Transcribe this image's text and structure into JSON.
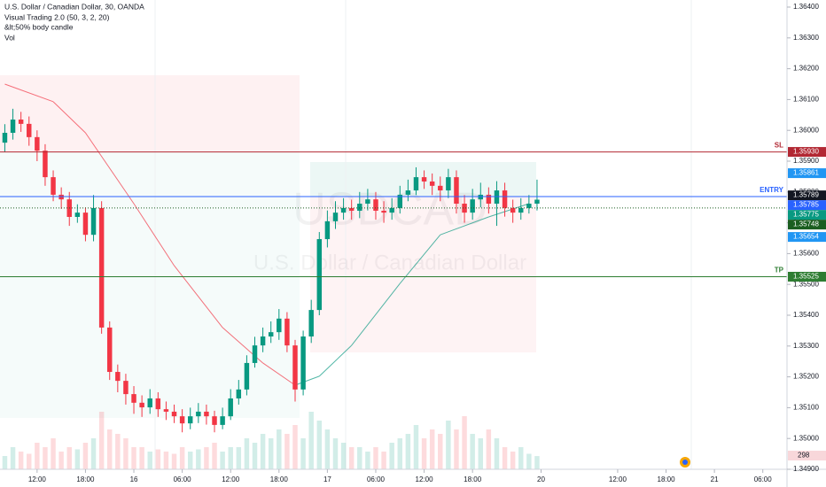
{
  "chart_data": {
    "type": "candlestick",
    "title": "U.S. Dollar / Canadian Dollar, 30, OANDA",
    "indicators": [
      "Visual Trading 2.0 (50, 3, 2, 20)",
      "&lt;50% body candle",
      "Vol"
    ],
    "watermark": [
      "USDCAD",
      "U.S. Dollar / Canadian Dollar"
    ],
    "x": [
      -4,
      -3,
      -2,
      -1,
      0,
      1,
      2,
      3,
      4,
      5,
      6,
      7,
      8,
      9,
      10,
      11,
      12,
      13,
      14,
      15,
      16,
      17,
      18,
      19,
      20,
      21,
      22,
      23,
      24,
      25,
      26,
      27,
      28,
      29,
      30,
      31,
      32,
      33,
      34,
      35,
      36,
      37,
      38,
      39,
      40,
      41,
      42,
      43,
      44,
      45,
      46,
      47,
      48,
      49,
      50,
      51,
      52,
      53,
      54,
      55,
      56,
      57,
      58,
      59,
      60,
      61,
      62
    ],
    "open": [
      1.3596,
      1.35992,
      1.36035,
      1.36021,
      1.35978,
      1.35934,
      1.35848,
      1.35791,
      1.35776,
      1.35719,
      1.35733,
      1.35661,
      1.35748,
      1.3536,
      1.35216,
      1.35187,
      1.35144,
      1.35116,
      1.35101,
      1.3513,
      1.35095,
      1.35087,
      1.35072,
      1.35049,
      1.35072,
      1.35087,
      1.35072,
      1.35044,
      1.35072,
      1.3513,
      1.35159,
      1.35245,
      1.35302,
      1.35331,
      1.35345,
      1.35389,
      1.35302,
      1.35159,
      1.35331,
      1.35417,
      1.35647,
      1.35705,
      1.35733,
      1.35748,
      1.35739,
      1.35762,
      1.35776,
      1.35739,
      1.35733,
      1.35748,
      1.35791,
      1.35805,
      1.35848,
      1.35834,
      1.3582,
      1.35805,
      1.35848,
      1.35762,
      1.35733,
      1.35776,
      1.35791,
      1.35762,
      1.35805,
      1.35748,
      1.35733,
      1.35748,
      1.35762
    ],
    "high": [
      1.3602,
      1.3607,
      1.3606,
      1.36045,
      1.36,
      1.35955,
      1.3587,
      1.35815,
      1.358,
      1.3576,
      1.3575,
      1.3579,
      1.3577,
      1.3538,
      1.3524,
      1.3521,
      1.3517,
      1.3514,
      1.3516,
      1.3515,
      1.3512,
      1.3511,
      1.35095,
      1.351,
      1.35115,
      1.3511,
      1.3509,
      1.351,
      1.3516,
      1.3519,
      1.3527,
      1.3533,
      1.3536,
      1.3538,
      1.3542,
      1.3541,
      1.3532,
      1.3535,
      1.3545,
      1.3567,
      1.3574,
      1.3577,
      1.3578,
      1.35775,
      1.358,
      1.3581,
      1.358,
      1.3577,
      1.3578,
      1.3582,
      1.3584,
      1.3588,
      1.3587,
      1.3586,
      1.3585,
      1.35875,
      1.3587,
      1.3579,
      1.3581,
      1.3583,
      1.35815,
      1.35835,
      1.3583,
      1.35775,
      1.3578,
      1.3579,
      1.3584
    ],
    "low": [
      1.3593,
      1.3597,
      1.35995,
      1.3595,
      1.359,
      1.3582,
      1.3577,
      1.35745,
      1.3569,
      1.357,
      1.3564,
      1.3564,
      1.3534,
      1.3519,
      1.3515,
      1.3511,
      1.3508,
      1.3507,
      1.3508,
      1.3507,
      1.3506,
      1.3505,
      1.3502,
      1.3503,
      1.3505,
      1.35045,
      1.3502,
      1.3503,
      1.3506,
      1.3511,
      1.3514,
      1.3523,
      1.3528,
      1.3531,
      1.3532,
      1.3528,
      1.3512,
      1.3514,
      1.3531,
      1.354,
      1.3562,
      1.3568,
      1.3571,
      1.3571,
      1.35715,
      1.3574,
      1.3571,
      1.357,
      1.3571,
      1.3573,
      1.3577,
      1.3579,
      1.3581,
      1.3579,
      1.3577,
      1.3578,
      1.3573,
      1.357,
      1.3571,
      1.3575,
      1.3573,
      1.3569,
      1.3572,
      1.357,
      1.3571,
      1.3573,
      1.3574
    ],
    "close": [
      1.35992,
      1.36035,
      1.36021,
      1.35978,
      1.35934,
      1.35848,
      1.35791,
      1.35776,
      1.35719,
      1.35733,
      1.35661,
      1.35748,
      1.3536,
      1.35216,
      1.35187,
      1.35144,
      1.35116,
      1.35101,
      1.3513,
      1.35095,
      1.35087,
      1.35072,
      1.35049,
      1.35072,
      1.35087,
      1.35072,
      1.35044,
      1.35072,
      1.3513,
      1.35159,
      1.35245,
      1.35302,
      1.35331,
      1.35345,
      1.35389,
      1.35302,
      1.35159,
      1.35331,
      1.35417,
      1.35647,
      1.35705,
      1.35733,
      1.35748,
      1.35739,
      1.35762,
      1.35776,
      1.35739,
      1.35733,
      1.35748,
      1.35791,
      1.35805,
      1.35848,
      1.35834,
      1.3582,
      1.35805,
      1.35848,
      1.35762,
      1.35733,
      1.35776,
      1.35791,
      1.35762,
      1.35805,
      1.35748,
      1.35733,
      1.35748,
      1.35762,
      1.35775
    ],
    "volume": [
      300,
      500,
      400,
      350,
      600,
      500,
      700,
      400,
      500,
      450,
      600,
      700,
      1300,
      900,
      800,
      700,
      500,
      500,
      400,
      450,
      400,
      350,
      500,
      400,
      450,
      500,
      600,
      400,
      500,
      500,
      700,
      600,
      800,
      700,
      900,
      800,
      1000,
      700,
      1300,
      1100,
      900,
      700,
      600,
      500,
      500,
      400,
      500,
      400,
      600,
      700,
      800,
      1000,
      700,
      900,
      800,
      1100,
      900,
      1200,
      800,
      700,
      900,
      700,
      500,
      400,
      500,
      350,
      298
    ],
    "volume_label": "298",
    "up_color": "#089981",
    "down_color": "#f23645",
    "ma": {
      "x": [
        -4,
        2,
        6,
        12,
        17,
        23,
        28,
        32,
        35,
        39,
        45,
        50,
        56,
        61
      ],
      "values": [
        1.3615,
        1.36093,
        1.35992,
        1.35762,
        1.35561,
        1.3536,
        1.35245,
        1.35173,
        1.35202,
        1.35302,
        1.35503,
        1.35661,
        1.35719,
        1.35762
      ]
    },
    "levels": [
      {
        "name": "SL",
        "value": 1.3593,
        "color": "#b22833"
      },
      {
        "name": "ENTRY",
        "value": 1.35785,
        "color": "#2962ff"
      },
      {
        "name": "TP",
        "value": 1.35525,
        "color": "#2e7d32"
      }
    ],
    "price_labels": [
      {
        "value": 1.3593,
        "label": "1.35930",
        "color": "#b22833"
      },
      {
        "value": 1.35861,
        "label": "1.35861",
        "color": "#2196f3"
      },
      {
        "value": 1.35789,
        "label": "1.35789",
        "color": "#131722"
      },
      {
        "value": 1.35785,
        "label": "1.35785",
        "color": "#2962ff"
      },
      {
        "value": 1.35775,
        "label": "1.35775",
        "color": "#089981"
      },
      {
        "value": 1.35748,
        "label": "1.35748",
        "color": "#1b5e20",
        "line": "dotted"
      },
      {
        "value": 1.35654,
        "label": "1.35654",
        "color": "#2196f3"
      },
      {
        "value": 1.35525,
        "label": "1.35525",
        "color": "#2e7d32"
      }
    ],
    "xlim": [
      -4.6,
      93
    ],
    "xticks": [
      {
        "value": 0,
        "label": "12:00"
      },
      {
        "value": 6,
        "label": "18:00"
      },
      {
        "value": 12,
        "label": "16"
      },
      {
        "value": 18,
        "label": "06:00"
      },
      {
        "value": 24,
        "label": "12:00"
      },
      {
        "value": 30,
        "label": "18:00"
      },
      {
        "value": 36,
        "label": "17"
      },
      {
        "value": 42,
        "label": "06:00"
      },
      {
        "value": 48,
        "label": "12:00"
      },
      {
        "value": 54,
        "label": "18:00"
      },
      {
        "value": 62.5,
        "label": "20"
      },
      {
        "value": 72,
        "label": "12:00"
      },
      {
        "value": 78,
        "label": "18:00"
      },
      {
        "value": 84,
        "label": "21"
      },
      {
        "value": 90,
        "label": "06:00"
      }
    ],
    "ylim": [
      1.349,
      1.36423
    ],
    "yticks": [
      {
        "value": 1.364,
        "label": "1.36400"
      },
      {
        "value": 1.363,
        "label": "1.36300"
      },
      {
        "value": 1.362,
        "label": "1.36200"
      },
      {
        "value": 1.361,
        "label": "1.36100"
      },
      {
        "value": 1.36,
        "label": "1.36000"
      },
      {
        "value": 1.359,
        "label": "1.35900"
      },
      {
        "value": 1.358,
        "label": "1.35800"
      },
      {
        "value": 1.357,
        "label": "1.35700"
      },
      {
        "value": 1.356,
        "label": "1.35600"
      },
      {
        "value": 1.355,
        "label": "1.35500"
      },
      {
        "value": 1.354,
        "label": "1.35400"
      },
      {
        "value": 1.353,
        "label": "1.35300"
      },
      {
        "value": 1.352,
        "label": "1.35200"
      },
      {
        "value": 1.351,
        "label": "1.35100"
      },
      {
        "value": 1.35,
        "label": "1.35000"
      },
      {
        "value": 1.349,
        "label": "1.34900"
      }
    ]
  }
}
